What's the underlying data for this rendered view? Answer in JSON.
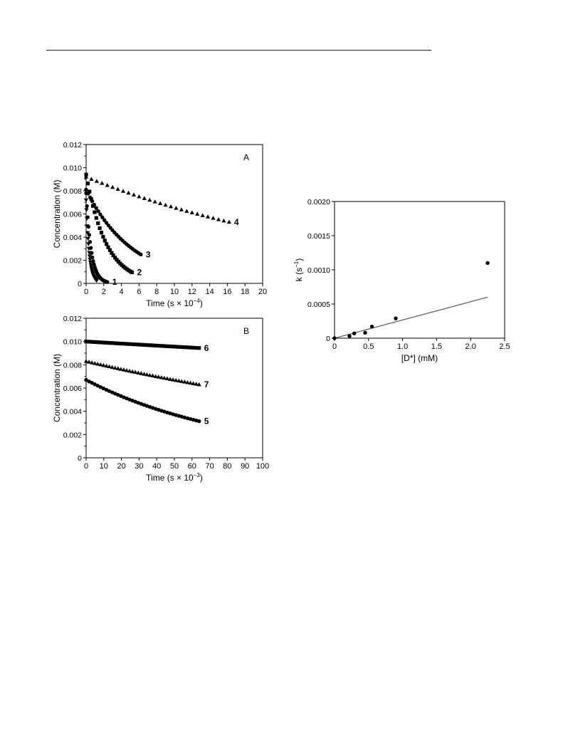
{
  "chart_data": [
    {
      "type": "scatter",
      "panel_label": "A",
      "xlabel": "Time (s × 10",
      "xlabel_exp": "−4",
      "xlabel_close": ")",
      "ylabel": "Concentration (M)",
      "xlim": [
        0,
        20
      ],
      "ylim": [
        0,
        0.012
      ],
      "xticks": [
        "0",
        "2",
        "4",
        "6",
        "8",
        "10",
        "12",
        "14",
        "16",
        "18",
        "20"
      ],
      "yticks": [
        "0",
        "0.002",
        "0.004",
        "0.006",
        "0.008",
        "0.010",
        "0.012"
      ],
      "series": [
        {
          "name": "1",
          "marker": "circle",
          "decay": {
            "c0": 0.0078,
            "k": 1.75,
            "x_end": 2.4
          }
        },
        {
          "name": "2",
          "marker": "square",
          "decay": {
            "c0": 0.0094,
            "k": 0.44,
            "x_end": 5.2
          }
        },
        {
          "name": "3",
          "marker": "circle",
          "decay": {
            "c0": 0.0081,
            "k": 0.19,
            "x_end": 6.2
          }
        },
        {
          "name": "4",
          "marker": "triangle",
          "decay": {
            "c0": 0.0092,
            "k": 0.034,
            "x_end": 16.2
          }
        },
        {
          "name": "",
          "marker": "triangle-down",
          "decay": {
            "c0": 0.0072,
            "k": 2.8,
            "x_end": 1.2
          }
        }
      ]
    },
    {
      "type": "scatter",
      "panel_label": "B",
      "xlabel": "Time (s × 10",
      "xlabel_exp": "−3",
      "xlabel_close": ")",
      "ylabel": "Concentration (M)",
      "xlim": [
        0,
        100
      ],
      "ylim": [
        0,
        0.012
      ],
      "xticks": [
        "0",
        "10",
        "20",
        "30",
        "40",
        "50",
        "60",
        "70",
        "80",
        "90",
        "100"
      ],
      "yticks": [
        "0",
        "0.002",
        "0.004",
        "0.006",
        "0.008",
        "0.010",
        "0.012"
      ],
      "series": [
        {
          "name": "6",
          "marker": "square",
          "decay": {
            "c0": 0.01,
            "k": 0.0009,
            "x_end": 64
          }
        },
        {
          "name": "7",
          "marker": "triangle",
          "decay": {
            "c0": 0.0083,
            "k": 0.0043,
            "x_end": 64
          }
        },
        {
          "name": "5",
          "marker": "circle",
          "decay": {
            "c0": 0.0067,
            "k": 0.0118,
            "x_end": 64
          }
        }
      ]
    },
    {
      "type": "scatter",
      "panel_label": "",
      "xlabel": "[D*] (mM)",
      "ylabel": "k (s",
      "ylabel_exp": "−1",
      "ylabel_close": ")",
      "xlim": [
        0,
        2.5
      ],
      "ylim": [
        0,
        0.002
      ],
      "xticks": [
        "0",
        "0.5",
        "1.0",
        "1.5",
        "2.0",
        "2.5"
      ],
      "yticks": [
        "0",
        "0.0005",
        "0.0010",
        "0.0015",
        "0.0020"
      ],
      "points": {
        "x": [
          0,
          0.22,
          0.29,
          0.45,
          0.55,
          0.9,
          2.25
        ],
        "y": [
          0,
          3e-05,
          7e-05,
          8e-05,
          0.00017,
          0.00029,
          0.0011
        ]
      },
      "fit_line": {
        "x": [
          0,
          2.25
        ],
        "y": [
          0,
          0.0006
        ]
      }
    }
  ]
}
